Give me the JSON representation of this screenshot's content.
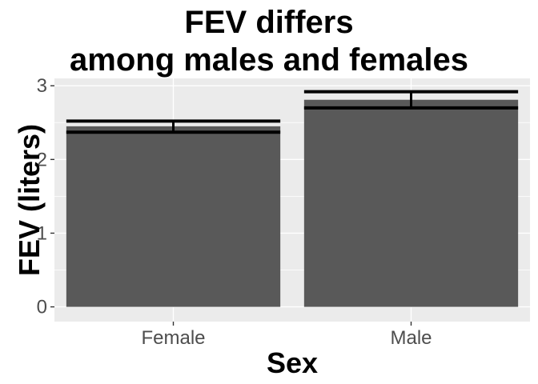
{
  "chart_data": {
    "type": "bar",
    "title_lines": [
      "FEV differs",
      "among males and females"
    ],
    "xlabel": "Sex",
    "ylabel": "FEV (liters)",
    "categories": [
      "Female",
      "Male"
    ],
    "values": [
      2.45,
      2.81
    ],
    "error_low": [
      2.37,
      2.7
    ],
    "error_high": [
      2.52,
      2.92
    ],
    "ylim": [
      -0.2,
      3.1
    ],
    "yticks": [
      0,
      1,
      2,
      3
    ],
    "grid": true,
    "colors": {
      "bar": "#595959",
      "panel": "#ebebeb",
      "grid": "#ffffff",
      "error": "#000000"
    }
  }
}
